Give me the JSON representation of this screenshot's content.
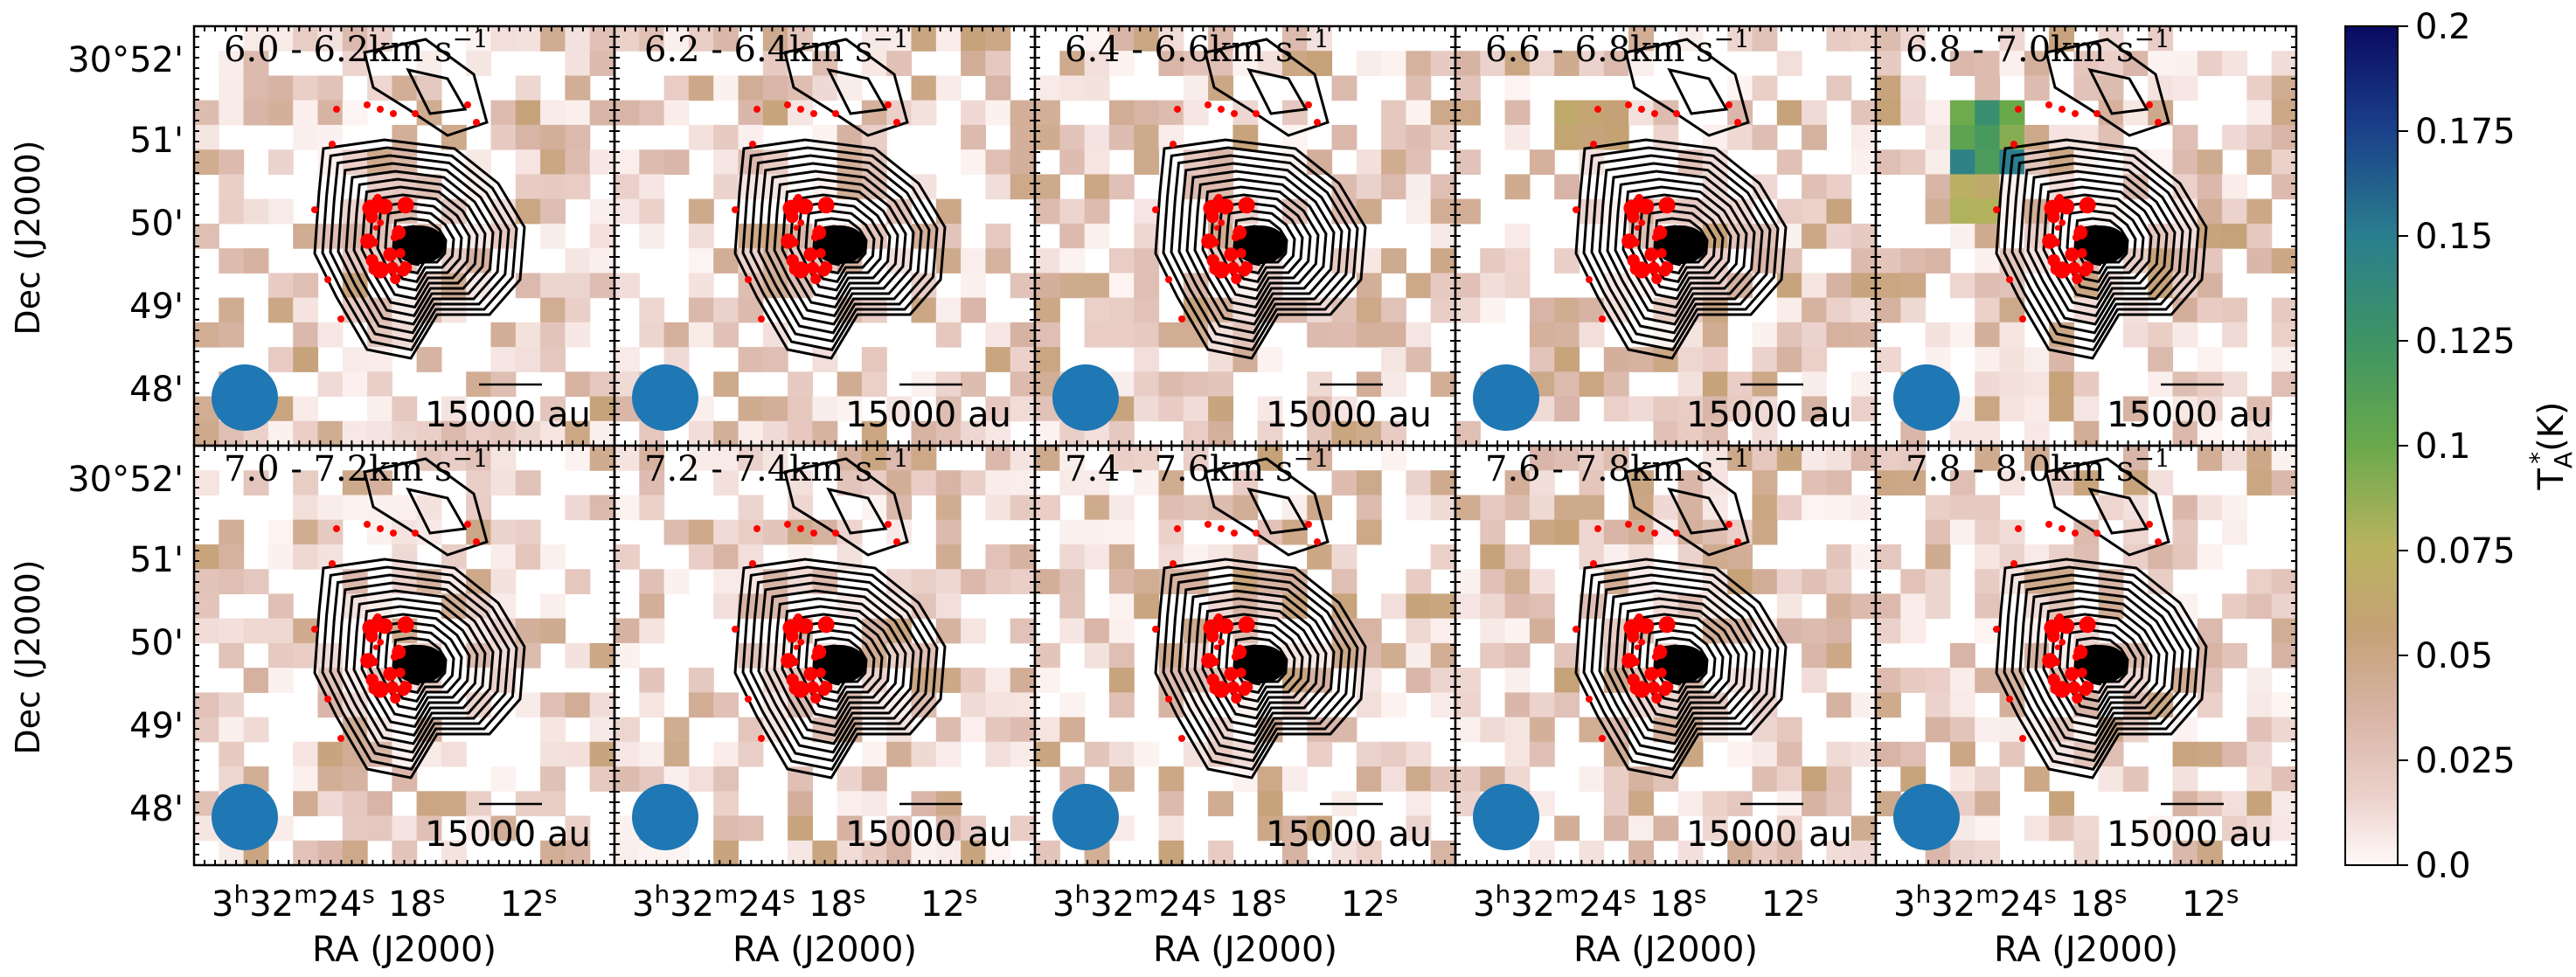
{
  "chart_data": {
    "type": "heatmap",
    "title": "",
    "grid_rows": 2,
    "grid_cols": 5,
    "xlabel": "RA (J2000)",
    "ylabel": "Dec (J2000)",
    "x_ticks": [
      {
        "h": "3",
        "m": "32",
        "s": "24"
      },
      {
        "s": "18"
      },
      {
        "s": "12"
      }
    ],
    "y_ticks": [
      {
        "deg": "30°52'"
      },
      {
        "min": "51'"
      },
      {
        "min": "50'"
      },
      {
        "min": "49'"
      },
      {
        "min": "48'"
      }
    ],
    "panel_labels": [
      {
        "range": "6.0 - 6.2",
        "unit": "km s",
        "exp": "−1"
      },
      {
        "range": "6.2 - 6.4",
        "unit": "km s",
        "exp": "−1"
      },
      {
        "range": "6.4 - 6.6",
        "unit": "km s",
        "exp": "−1"
      },
      {
        "range": "6.6 - 6.8",
        "unit": "km s",
        "exp": "−1"
      },
      {
        "range": "6.8 - 7.0",
        "unit": "km s",
        "exp": "−1"
      },
      {
        "range": "7.0 - 7.2",
        "unit": "km s",
        "exp": "−1"
      },
      {
        "range": "7.2 - 7.4",
        "unit": "km s",
        "exp": "−1"
      },
      {
        "range": "7.4 - 7.6",
        "unit": "km s",
        "exp": "−1"
      },
      {
        "range": "7.6 - 7.8",
        "unit": "km s",
        "exp": "−1"
      },
      {
        "range": "7.8 - 8.0",
        "unit": "km s",
        "exp": "−1"
      }
    ],
    "scalebar_label": "15000 au",
    "colorbar": {
      "label_main": "T",
      "label_sub": "A",
      "label_sup": "*",
      "label_unit": "(K)",
      "range": [
        0.0,
        0.2
      ],
      "ticks": [
        "0.2",
        "0.175",
        "0.15",
        "0.125",
        "0.1",
        "0.075",
        "0.05",
        "0.025",
        "0.0"
      ],
      "colormap": "gist_earth_r"
    },
    "colors": {
      "contour": "#000000",
      "sources": "#ff0000",
      "beam": "#1f77b4",
      "frame": "#000000"
    }
  }
}
